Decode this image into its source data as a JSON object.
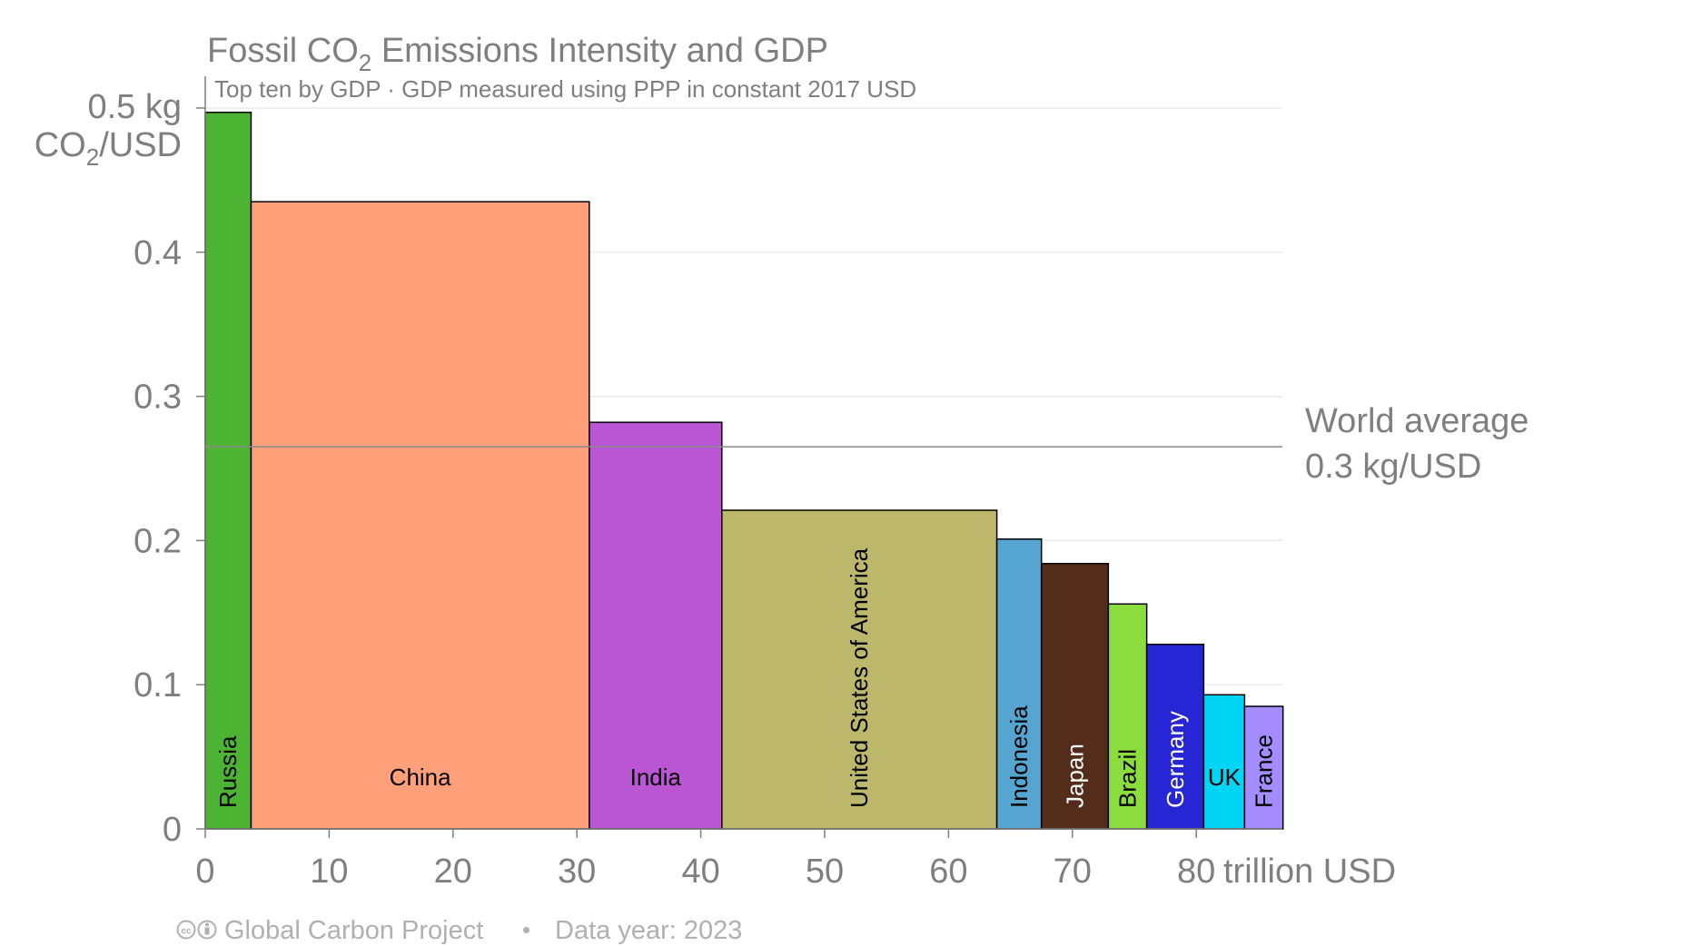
{
  "chart_data": {
    "type": "bar",
    "variable_width": true,
    "title_main": "Fossil CO",
    "title_sub": "2",
    "title_rest": " Emissions Intensity and GDP",
    "subtitle": "Top ten by GDP · GDP measured using PPP in constant 2017 USD",
    "ylabel_top_value": "0.5 kg",
    "ylabel_unit_a": "CO",
    "ylabel_unit_sub": "2",
    "ylabel_unit_b": "/USD",
    "xlabel": "trillion USD",
    "xlim": [
      0,
      87
    ],
    "ylim": [
      0,
      0.5
    ],
    "x_ticks": [
      "0",
      "10",
      "20",
      "30",
      "40",
      "50",
      "60",
      "70",
      "80"
    ],
    "x_tick_values": [
      0,
      10,
      20,
      30,
      40,
      50,
      60,
      70,
      80
    ],
    "y_ticks": [
      "0",
      "0.1",
      "0.2",
      "0.3",
      "0.4"
    ],
    "y_tick_values": [
      0,
      0.1,
      0.2,
      0.3,
      0.4
    ],
    "grid": true,
    "categories": [
      "Russia",
      "China",
      "India",
      "United States of America",
      "Indonesia",
      "Japan",
      "Brazil",
      "Germany",
      "UK",
      "France"
    ],
    "gdp_start": [
      0,
      3.7,
      31.0,
      41.7,
      63.9,
      67.5,
      72.9,
      76.0,
      80.6,
      83.9
    ],
    "gdp_width": [
      3.7,
      27.3,
      10.7,
      22.2,
      3.6,
      5.4,
      3.1,
      4.6,
      3.3,
      3.1
    ],
    "intensity": [
      0.497,
      0.435,
      0.282,
      0.221,
      0.201,
      0.184,
      0.156,
      0.128,
      0.093,
      0.085
    ],
    "colors": [
      "#4db332",
      "#ffa07a",
      "#ba55d3",
      "#bdb76b",
      "#56a5d1",
      "#542c1a",
      "#8add3d",
      "#2626d4",
      "#00d5f5",
      "#a48cff"
    ],
    "label_colors": [
      "#000000",
      "#000000",
      "#000000",
      "#000000",
      "#000000",
      "#ffffff",
      "#000000",
      "#ffffff",
      "#000000",
      "#000000"
    ],
    "label_vertical": [
      true,
      false,
      false,
      true,
      true,
      true,
      true,
      true,
      false,
      true
    ],
    "world_average": 0.265,
    "world_average_label_line1": "World average",
    "world_average_label_line2": "0.3 kg/USD"
  },
  "footer": {
    "cc_icons": "cc-by-icon",
    "source": "Global Carbon Project",
    "separator": "•",
    "data_year": "Data year: 2023"
  },
  "colors": {
    "text_gray": "#7f7f7f",
    "grid": "#e6e6e6",
    "footer_gray": "#b0b0b0"
  }
}
